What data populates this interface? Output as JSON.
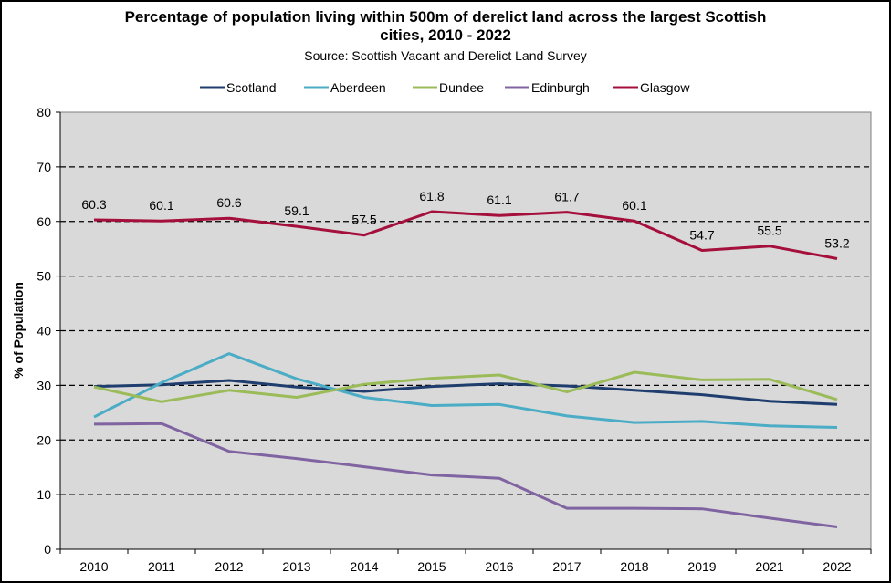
{
  "chart_data": {
    "type": "line",
    "title": "Percentage of population living within 500m of derelict land across the largest Scottish cities, 2010 - 2022",
    "title_line1": "Percentage of population living within 500m of derelict land across the largest Scottish",
    "title_line2": "cities, 2010 - 2022",
    "subtitle": "Source: Scottish Vacant and Derelict Land Survey",
    "xlabel": "",
    "ylabel": "% of Population",
    "ylim": [
      0,
      80
    ],
    "yticks": [
      0,
      10,
      20,
      30,
      40,
      50,
      60,
      70,
      80
    ],
    "grid": "dashed horizontal",
    "legend_position": "top",
    "categories": [
      "2010",
      "2011",
      "2012",
      "2013",
      "2014",
      "2015",
      "2016",
      "2017",
      "2018",
      "2019",
      "2021",
      "2022"
    ],
    "series": [
      {
        "name": "Scotland",
        "color": "#1f3e6e",
        "values": [
          29.8,
          30.1,
          30.9,
          29.7,
          28.9,
          29.8,
          30.3,
          29.9,
          29.1,
          28.3,
          27.1,
          26.5
        ]
      },
      {
        "name": "Aberdeen",
        "color": "#4bacc6",
        "values": [
          24.2,
          30.5,
          35.8,
          31.2,
          27.8,
          26.3,
          26.5,
          24.4,
          23.2,
          23.4,
          22.6,
          22.3
        ]
      },
      {
        "name": "Dundee",
        "color": "#9bbb59",
        "values": [
          29.7,
          27.0,
          29.1,
          27.8,
          30.2,
          31.3,
          31.9,
          28.8,
          32.4,
          31.0,
          31.1,
          27.4
        ]
      },
      {
        "name": "Edinburgh",
        "color": "#8064a2",
        "values": [
          22.9,
          23.0,
          17.9,
          16.6,
          15.1,
          13.6,
          13.0,
          7.5,
          7.5,
          7.4,
          5.7,
          4.1
        ]
      },
      {
        "name": "Glasgow",
        "color": "#a50f3c",
        "values": [
          60.3,
          60.1,
          60.6,
          59.1,
          57.5,
          61.8,
          61.1,
          61.7,
          60.1,
          54.7,
          55.5,
          53.2
        ],
        "data_labels": [
          "60.3",
          "60.1",
          "60.6",
          "59.1",
          "57.5",
          "61.8",
          "61.1",
          "61.7",
          "60.1",
          "54.7",
          "55.5",
          "53.2"
        ]
      }
    ]
  }
}
